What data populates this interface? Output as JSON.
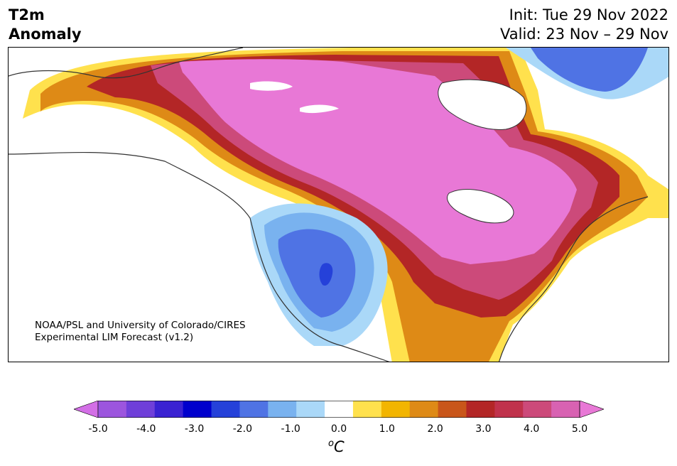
{
  "header": {
    "title_line1": "T2m",
    "title_line2": "Anomaly",
    "init": "Init: Tue 29 Nov 2022",
    "valid": "Valid: 23 Nov – 29 Nov"
  },
  "credit": {
    "line1": "NOAA/PSL and University of Colorado/CIRES",
    "line2": "Experimental LIM Forecast (v1.2)"
  },
  "colorbar": {
    "colors": [
      "#d36fe6",
      "#9c55de",
      "#6f3fd9",
      "#3a22d2",
      "#0000cd",
      "#2541d9",
      "#4f73e4",
      "#79b2ef",
      "#aad8f8",
      "#ffffff",
      "#ffe14d",
      "#f2b500",
      "#de8a16",
      "#c9561a",
      "#b32626",
      "#c0324c",
      "#cc4a7a",
      "#d862b2",
      "#e878d6"
    ],
    "tick_labels": [
      "-5.0",
      "-4.0",
      "-3.0",
      "-2.0",
      "-1.0",
      "0.0",
      "1.0",
      "2.0",
      "3.0",
      "4.0",
      "5.0"
    ],
    "unit_main": "C",
    "unit_sup": "o"
  }
}
